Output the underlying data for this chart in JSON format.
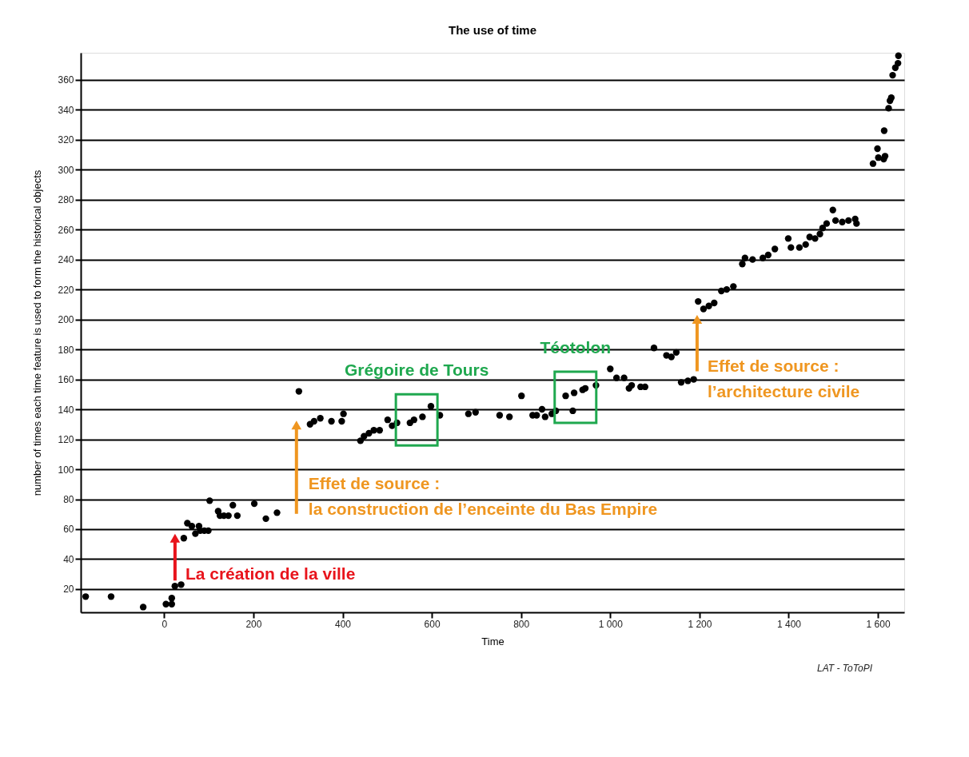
{
  "chart_data": {
    "type": "scatter",
    "title": "The use of time",
    "xlabel": "Time",
    "ylabel": "number of times each time feature is used to form the historical objects",
    "xlim": [
      -187,
      1659
    ],
    "ylim": [
      4.5,
      378
    ],
    "xticks": [
      0,
      200,
      400,
      600,
      800,
      {
        "value": 1000,
        "label": "1 000"
      },
      {
        "value": 1200,
        "label": "1 200"
      },
      {
        "value": 1400,
        "label": "1 400"
      },
      {
        "value": 1600,
        "label": "1 600"
      }
    ],
    "yticks": [
      20,
      40,
      60,
      80,
      100,
      120,
      140,
      160,
      180,
      200,
      220,
      240,
      260,
      280,
      300,
      320,
      340,
      360
    ],
    "grid": "y",
    "marker": "circle",
    "legend": false,
    "series": [
      {
        "color": "#000000",
        "x": [
          -176,
          -119,
          -47,
          4,
          17,
          17,
          24,
          38,
          44,
          52,
          62,
          70,
          78,
          81,
          90,
          99,
          102,
          121,
          125,
          134,
          144,
          154,
          164,
          202,
          228,
          253,
          302,
          327,
          336,
          350,
          375,
          398,
          402,
          440,
          448,
          459,
          470,
          483,
          501,
          511,
          522,
          551,
          560,
          579,
          598,
          618,
          682,
          698,
          752,
          774,
          801,
          826,
          835,
          847,
          854,
          869,
          878,
          900,
          916,
          919,
          938,
          944,
          968,
          1000,
          1014,
          1031,
          1042,
          1048,
          1068,
          1078,
          1098,
          1126,
          1137,
          1148,
          1159,
          1174,
          1187,
          1197,
          1209,
          1221,
          1233,
          1249,
          1261,
          1276,
          1296,
          1302,
          1319,
          1342,
          1354,
          1369,
          1399,
          1405,
          1424,
          1438,
          1447,
          1459,
          1470,
          1476,
          1485,
          1499,
          1505,
          1520,
          1534,
          1549,
          1552,
          1589,
          1599,
          1601,
          1613,
          1616,
          1614,
          1624,
          1627,
          1630,
          1633,
          1639,
          1645,
          1646
        ],
        "values": [
          15,
          15,
          8,
          10,
          10,
          14,
          22,
          23,
          54,
          64,
          62,
          57,
          62,
          59,
          59,
          59,
          79,
          72,
          69,
          69,
          69,
          76,
          69,
          77,
          67,
          71,
          152,
          130,
          132,
          134,
          132,
          132,
          137,
          119,
          122,
          124,
          126,
          126,
          133,
          129,
          131,
          131,
          133,
          135,
          142,
          136,
          137,
          138,
          136,
          135,
          149,
          136,
          136,
          140,
          135,
          137,
          139,
          149,
          139,
          151,
          153,
          154,
          156,
          167,
          161,
          161,
          154,
          156,
          155,
          155,
          181,
          176,
          175,
          178,
          158,
          159,
          160,
          212,
          207,
          209,
          211,
          219,
          220,
          222,
          237,
          241,
          240,
          241,
          243,
          247,
          254,
          248,
          248,
          250,
          255,
          254,
          257,
          261,
          264,
          273,
          266,
          265,
          266,
          267,
          264,
          304,
          314,
          308,
          307,
          309,
          326,
          341,
          346,
          348,
          363,
          368,
          371,
          376
        ]
      }
    ],
    "annotations": [
      {
        "text": "La création de la ville",
        "x": 44,
        "y": 54
      },
      {
        "text": "Effet de source :\nla construction de l’enceinte du Bas Empire",
        "x": 327,
        "y": 130
      },
      {
        "text": "Grégoire de Tours",
        "x": 566,
        "y": 133
      },
      {
        "text": "Téotolon",
        "x": 922,
        "y": 148
      },
      {
        "text": "Effet de source :\nl’architecture civile",
        "x": 1209,
        "y": 207
      },
      "LAT - ToToPI"
    ]
  }
}
